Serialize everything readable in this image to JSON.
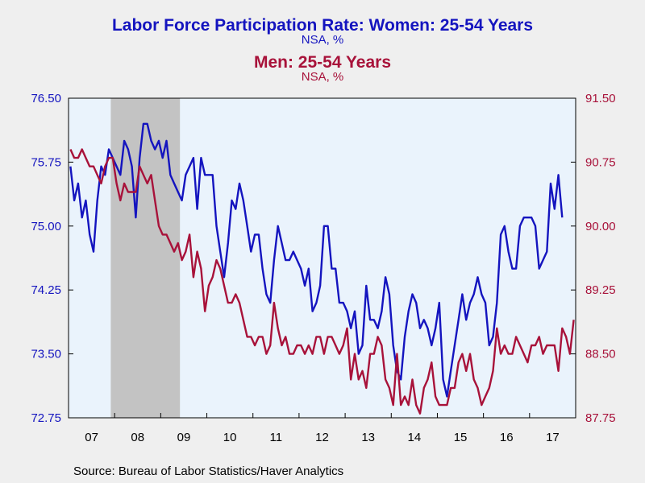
{
  "colors": {
    "women": "#1414bf",
    "men": "#a8123a",
    "background": "#efefef",
    "plot_background": "#eaf3fc",
    "recession": "#c3c3c3",
    "axis": "#000000"
  },
  "titles": {
    "women_title": "Labor Force Participation Rate: Women: 25-54 Years",
    "women_units": "NSA, %",
    "men_title": "Men: 25-54 Years",
    "men_units": "NSA, %"
  },
  "source": "Source:  Bureau of Labor Statistics/Haver Analytics",
  "chart_data": {
    "type": "line",
    "x_unit": "month",
    "x_range": [
      "2007-01",
      "2017-12"
    ],
    "x_tick_labels": [
      "07",
      "08",
      "09",
      "10",
      "11",
      "12",
      "13",
      "14",
      "15",
      "16",
      "17"
    ],
    "recession_shading": {
      "start": "2007-12",
      "end": "2009-06"
    },
    "left_axis": {
      "range": [
        72.75,
        76.5
      ],
      "ticks": [
        "72.75",
        "73.50",
        "74.25",
        "75.00",
        "75.75",
        "76.50"
      ],
      "color": "#1414bf"
    },
    "right_axis": {
      "range": [
        87.75,
        91.5
      ],
      "ticks": [
        "87.75",
        "88.50",
        "89.25",
        "90.00",
        "90.75",
        "91.50"
      ],
      "color": "#a8123a"
    },
    "grid": false,
    "series": [
      {
        "name": "Women: 25-54 Years",
        "axis": "left",
        "color": "#1414bf",
        "start": "2007-01",
        "values": [
          75.7,
          75.3,
          75.5,
          75.1,
          75.3,
          74.9,
          74.7,
          75.3,
          75.7,
          75.6,
          75.9,
          75.8,
          75.7,
          75.6,
          76.0,
          75.9,
          75.7,
          75.1,
          75.8,
          76.2,
          76.2,
          76.0,
          75.9,
          76.0,
          75.8,
          76.0,
          75.6,
          75.5,
          75.4,
          75.3,
          75.6,
          75.7,
          75.8,
          75.2,
          75.8,
          75.6,
          75.6,
          75.6,
          75.0,
          74.7,
          74.4,
          74.8,
          75.3,
          75.2,
          75.5,
          75.3,
          75.0,
          74.7,
          74.9,
          74.9,
          74.5,
          74.2,
          74.1,
          74.6,
          75.0,
          74.8,
          74.6,
          74.6,
          74.7,
          74.6,
          74.5,
          74.3,
          74.5,
          74.0,
          74.1,
          74.3,
          75.0,
          75.0,
          74.5,
          74.5,
          74.1,
          74.1,
          74.0,
          73.8,
          74.0,
          73.5,
          73.6,
          74.3,
          73.9,
          73.9,
          73.8,
          74.0,
          74.4,
          74.2,
          73.6,
          73.3,
          73.2,
          73.7,
          74.0,
          74.2,
          74.1,
          73.8,
          73.9,
          73.8,
          73.6,
          73.8,
          74.1,
          73.2,
          73.0,
          73.3,
          73.6,
          73.9,
          74.2,
          73.9,
          74.1,
          74.2,
          74.4,
          74.2,
          74.1,
          73.6,
          73.7,
          74.1,
          74.9,
          75.0,
          74.7,
          74.5,
          74.5,
          75.0,
          75.1,
          75.1,
          75.1,
          75.0,
          74.5,
          74.6,
          74.7,
          75.5,
          75.2,
          75.6,
          75.1
        ]
      },
      {
        "name": "Men: 25-54 Years",
        "axis": "right",
        "color": "#a8123a",
        "start": "2007-01",
        "values": [
          90.9,
          90.8,
          90.8,
          90.9,
          90.8,
          90.7,
          90.7,
          90.6,
          90.5,
          90.7,
          90.8,
          90.8,
          90.5,
          90.3,
          90.5,
          90.4,
          90.4,
          90.4,
          90.7,
          90.6,
          90.5,
          90.6,
          90.3,
          90.0,
          89.9,
          89.9,
          89.8,
          89.7,
          89.8,
          89.6,
          89.7,
          89.9,
          89.4,
          89.7,
          89.5,
          89.0,
          89.3,
          89.4,
          89.6,
          89.5,
          89.3,
          89.1,
          89.1,
          89.2,
          89.1,
          88.9,
          88.7,
          88.7,
          88.6,
          88.7,
          88.7,
          88.5,
          88.6,
          89.1,
          88.8,
          88.6,
          88.7,
          88.5,
          88.5,
          88.6,
          88.6,
          88.5,
          88.6,
          88.5,
          88.7,
          88.7,
          88.5,
          88.7,
          88.7,
          88.6,
          88.5,
          88.6,
          88.8,
          88.2,
          88.5,
          88.2,
          88.3,
          88.1,
          88.5,
          88.5,
          88.7,
          88.6,
          88.2,
          88.1,
          87.9,
          88.5,
          87.9,
          88.0,
          87.9,
          88.2,
          87.9,
          87.8,
          88.1,
          88.2,
          88.4,
          88.0,
          87.9,
          87.9,
          87.9,
          88.1,
          88.1,
          88.4,
          88.5,
          88.3,
          88.5,
          88.2,
          88.1,
          87.9,
          88.0,
          88.1,
          88.3,
          88.8,
          88.5,
          88.6,
          88.5,
          88.5,
          88.7,
          88.6,
          88.5,
          88.4,
          88.6,
          88.6,
          88.7,
          88.5,
          88.6,
          88.6,
          88.6,
          88.3,
          88.8,
          88.7,
          88.5,
          88.9
        ]
      }
    ]
  }
}
